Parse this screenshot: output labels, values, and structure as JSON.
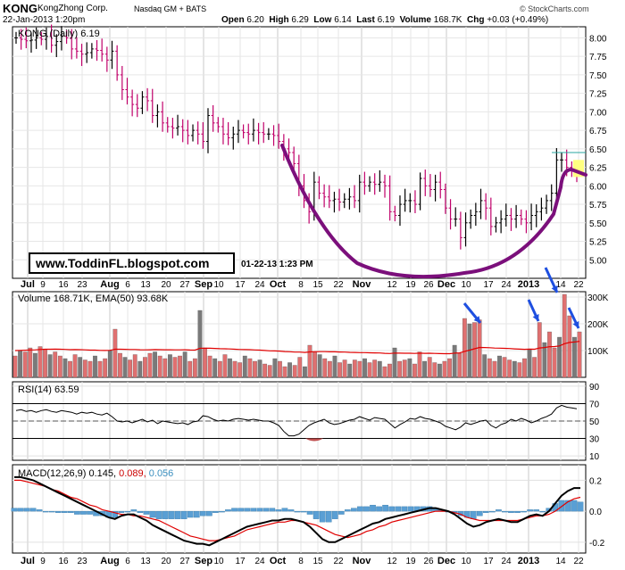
{
  "header": {
    "ticker": "KONG",
    "company": "KongZhong Corp.",
    "exchange": "Nasdaq GM + BATS",
    "datetime": "22-Jan-2013 1:20pm",
    "watermark": "© StockCharts.com",
    "quote": {
      "open_label": "Open",
      "open": "6.20",
      "high_label": "High",
      "high": "6.29",
      "low_label": "Low",
      "low": "6.14",
      "last_label": "Last",
      "last": "6.19",
      "volume_label": "Volume",
      "volume": "168.7K",
      "chg_label": "Chg",
      "chg": "+0.03 (+0.49%)"
    }
  },
  "chart_data": [
    {
      "type": "ohlc",
      "legend": "KONG (Daily) 6.19",
      "ylim": [
        4.75,
        8.15
      ],
      "y_ticks": [
        "8.00",
        "7.75",
        "7.50",
        "7.25",
        "7.00",
        "6.75",
        "6.50",
        "6.25",
        "6.00",
        "5.75",
        "5.50",
        "5.25",
        "5.00"
      ],
      "annotation": {
        "site": "www.ToddinFL.blogspot.com",
        "stamp": "01-22-13  1:23 PM"
      },
      "x_ticks": [
        "Jul",
        "9",
        "16",
        "23",
        "Aug",
        "6",
        "13",
        "20",
        "27",
        "Sep",
        "10",
        "17",
        "24",
        "Oct",
        "8",
        "15",
        "22",
        "Nov",
        "12",
        "19",
        "26",
        "Dec",
        "10",
        "17",
        "24",
        "2013",
        "14",
        "22"
      ],
      "close_path": [
        8.0,
        7.98,
        7.96,
        7.97,
        8.0,
        7.98,
        8.02,
        7.9,
        7.95,
        8.02,
        8.0,
        7.85,
        7.82,
        7.78,
        7.8,
        7.85,
        7.83,
        7.78,
        7.7,
        7.82,
        7.5,
        7.3,
        7.2,
        7.1,
        7.05,
        7.2,
        7.15,
        6.95,
        7.0,
        6.85,
        6.8,
        6.78,
        6.8,
        6.75,
        6.68,
        6.75,
        6.7,
        6.6,
        6.95,
        6.85,
        6.8,
        6.7,
        6.65,
        6.7,
        6.75,
        6.72,
        6.7,
        6.75,
        6.72,
        6.7,
        6.7,
        6.68,
        6.6,
        6.5,
        6.45,
        6.3,
        6.0,
        5.8,
        5.65,
        6.05,
        5.9,
        5.85,
        5.8,
        5.82,
        5.78,
        5.82,
        5.85,
        5.8,
        6.05,
        6.0,
        6.05,
        6.02,
        6.05,
        6.0,
        5.65,
        5.6,
        5.75,
        5.8,
        5.8,
        5.75,
        6.1,
        6.0,
        5.95,
        6.05,
        5.95,
        5.7,
        5.55,
        5.55,
        5.3,
        5.5,
        5.6,
        5.65,
        5.8,
        5.7,
        5.45,
        5.5,
        5.55,
        5.6,
        5.55,
        5.6,
        5.55,
        5.5,
        5.6,
        5.65,
        5.7,
        5.8,
        5.9,
        6.35,
        6.35,
        6.25,
        6.2,
        6.19
      ]
    },
    {
      "type": "bar",
      "legend": "Volume 168.71K, EMA(50) 93.68K",
      "ylim": [
        0,
        320
      ],
      "y_ticks": [
        "300K",
        "200K",
        "100K"
      ],
      "arrows": 4,
      "values": [
        80,
        100,
        95,
        110,
        90,
        115,
        105,
        85,
        95,
        80,
        70,
        60,
        85,
        75,
        65,
        60,
        80,
        60,
        70,
        100,
        180,
        90,
        75,
        65,
        85,
        60,
        75,
        90,
        95,
        80,
        70,
        85,
        75,
        80,
        95,
        60,
        70,
        250,
        110,
        80,
        70,
        60,
        85,
        70,
        60,
        55,
        80,
        70,
        60,
        65,
        50,
        45,
        70,
        60,
        40,
        55,
        45,
        75,
        40,
        120,
        95,
        85,
        70,
        60,
        80,
        55,
        65,
        50,
        65,
        60,
        70,
        55,
        65,
        60,
        40,
        50,
        110,
        60,
        65,
        70,
        50,
        95,
        60,
        75,
        55,
        50,
        60,
        70,
        120,
        90,
        220,
        200,
        205,
        215,
        85,
        70,
        60,
        80,
        75,
        65,
        60,
        55,
        70,
        105,
        75,
        205,
        130,
        170,
        110,
        150,
        310,
        230,
        150,
        170
      ]
    },
    {
      "type": "line",
      "legend": "RSI(14) 63.59",
      "ylim": [
        5,
        95
      ],
      "y_ticks": [
        "90",
        "70",
        "50",
        "30",
        "10"
      ],
      "values": [
        62,
        63,
        61,
        62,
        60,
        62,
        63,
        61,
        60,
        62,
        61,
        60,
        58,
        60,
        59,
        60,
        58,
        57,
        59,
        55,
        50,
        49,
        50,
        48,
        50,
        52,
        49,
        51,
        47,
        50,
        49,
        48,
        47,
        48,
        46,
        49,
        50,
        56,
        55,
        52,
        50,
        51,
        50,
        52,
        53,
        52,
        51,
        52,
        51,
        50,
        50,
        48,
        45,
        38,
        33,
        33,
        35,
        40,
        45,
        48,
        50,
        52,
        48,
        46,
        47,
        49,
        51,
        52,
        55,
        53,
        51,
        54,
        53,
        52,
        47,
        42,
        46,
        49,
        53,
        52,
        55,
        53,
        52,
        50,
        48,
        44,
        42,
        40,
        43,
        48,
        46,
        48,
        50,
        51,
        45,
        42,
        46,
        48,
        52,
        50,
        53,
        51,
        48,
        50,
        53,
        55,
        58,
        65,
        68,
        66,
        65,
        64
      ]
    },
    {
      "type": "line",
      "legend_label": "MACD(12,26,9)",
      "legend_values": [
        "0.145",
        "0.089",
        "0.056"
      ],
      "ylim": [
        -0.27,
        0.3
      ],
      "y_ticks": [
        "0.2",
        "0.0",
        "-0.2"
      ],
      "series_macd": [
        0.22,
        0.22,
        0.21,
        0.2,
        0.18,
        0.16,
        0.14,
        0.12,
        0.1,
        0.08,
        0.06,
        0.04,
        0.02,
        0.0,
        -0.02,
        -0.04,
        -0.05,
        -0.03,
        -0.02,
        -0.02,
        -0.04,
        -0.06,
        -0.09,
        -0.11,
        -0.13,
        -0.15,
        -0.17,
        -0.19,
        -0.2,
        -0.21,
        -0.21,
        -0.22,
        -0.2,
        -0.18,
        -0.16,
        -0.14,
        -0.12,
        -0.1,
        -0.09,
        -0.08,
        -0.07,
        -0.06,
        -0.06,
        -0.05,
        -0.05,
        -0.06,
        -0.07,
        -0.1,
        -0.14,
        -0.18,
        -0.2,
        -0.2,
        -0.18,
        -0.16,
        -0.14,
        -0.12,
        -0.1,
        -0.08,
        -0.07,
        -0.05,
        -0.04,
        -0.03,
        -0.02,
        -0.01,
        0.0,
        0.01,
        0.02,
        0.02,
        0.01,
        0.0,
        -0.02,
        -0.05,
        -0.08,
        -0.1,
        -0.09,
        -0.07,
        -0.06,
        -0.05,
        -0.06,
        -0.07,
        -0.07,
        -0.05,
        -0.03,
        -0.02,
        -0.03,
        0.0,
        0.05,
        0.1,
        0.13,
        0.15,
        0.15
      ],
      "series_signal": [
        0.2,
        0.2,
        0.19,
        0.18,
        0.17,
        0.16,
        0.14,
        0.13,
        0.11,
        0.09,
        0.08,
        0.06,
        0.04,
        0.03,
        0.01,
        0.0,
        -0.01,
        -0.02,
        -0.02,
        -0.03,
        -0.03,
        -0.04,
        -0.05,
        -0.06,
        -0.08,
        -0.1,
        -0.12,
        -0.14,
        -0.16,
        -0.17,
        -0.18,
        -0.19,
        -0.19,
        -0.18,
        -0.17,
        -0.16,
        -0.14,
        -0.12,
        -0.11,
        -0.1,
        -0.09,
        -0.08,
        -0.07,
        -0.07,
        -0.06,
        -0.06,
        -0.07,
        -0.08,
        -0.09,
        -0.11,
        -0.13,
        -0.15,
        -0.16,
        -0.17,
        -0.16,
        -0.15,
        -0.13,
        -0.12,
        -0.1,
        -0.09,
        -0.07,
        -0.06,
        -0.05,
        -0.04,
        -0.03,
        -0.02,
        -0.01,
        0.0,
        0.0,
        0.0,
        -0.01,
        -0.02,
        -0.04,
        -0.05,
        -0.06,
        -0.06,
        -0.06,
        -0.06,
        -0.06,
        -0.06,
        -0.06,
        -0.05,
        -0.04,
        -0.03,
        -0.03,
        -0.02,
        0.0,
        0.03,
        0.06,
        0.08,
        0.09
      ]
    }
  ],
  "colors": {
    "cup": "#7b0f7b",
    "ema": "#e00000",
    "up_volume": "#e07070",
    "down_volume": "#7a7a7a",
    "macd_histogram": "#5a9fd4",
    "arrows": "#1e4fe0",
    "target_line": "#2aa7a0",
    "macd_signal_value": "#cc0000",
    "macd_hist_value": "#3a8fbf"
  }
}
